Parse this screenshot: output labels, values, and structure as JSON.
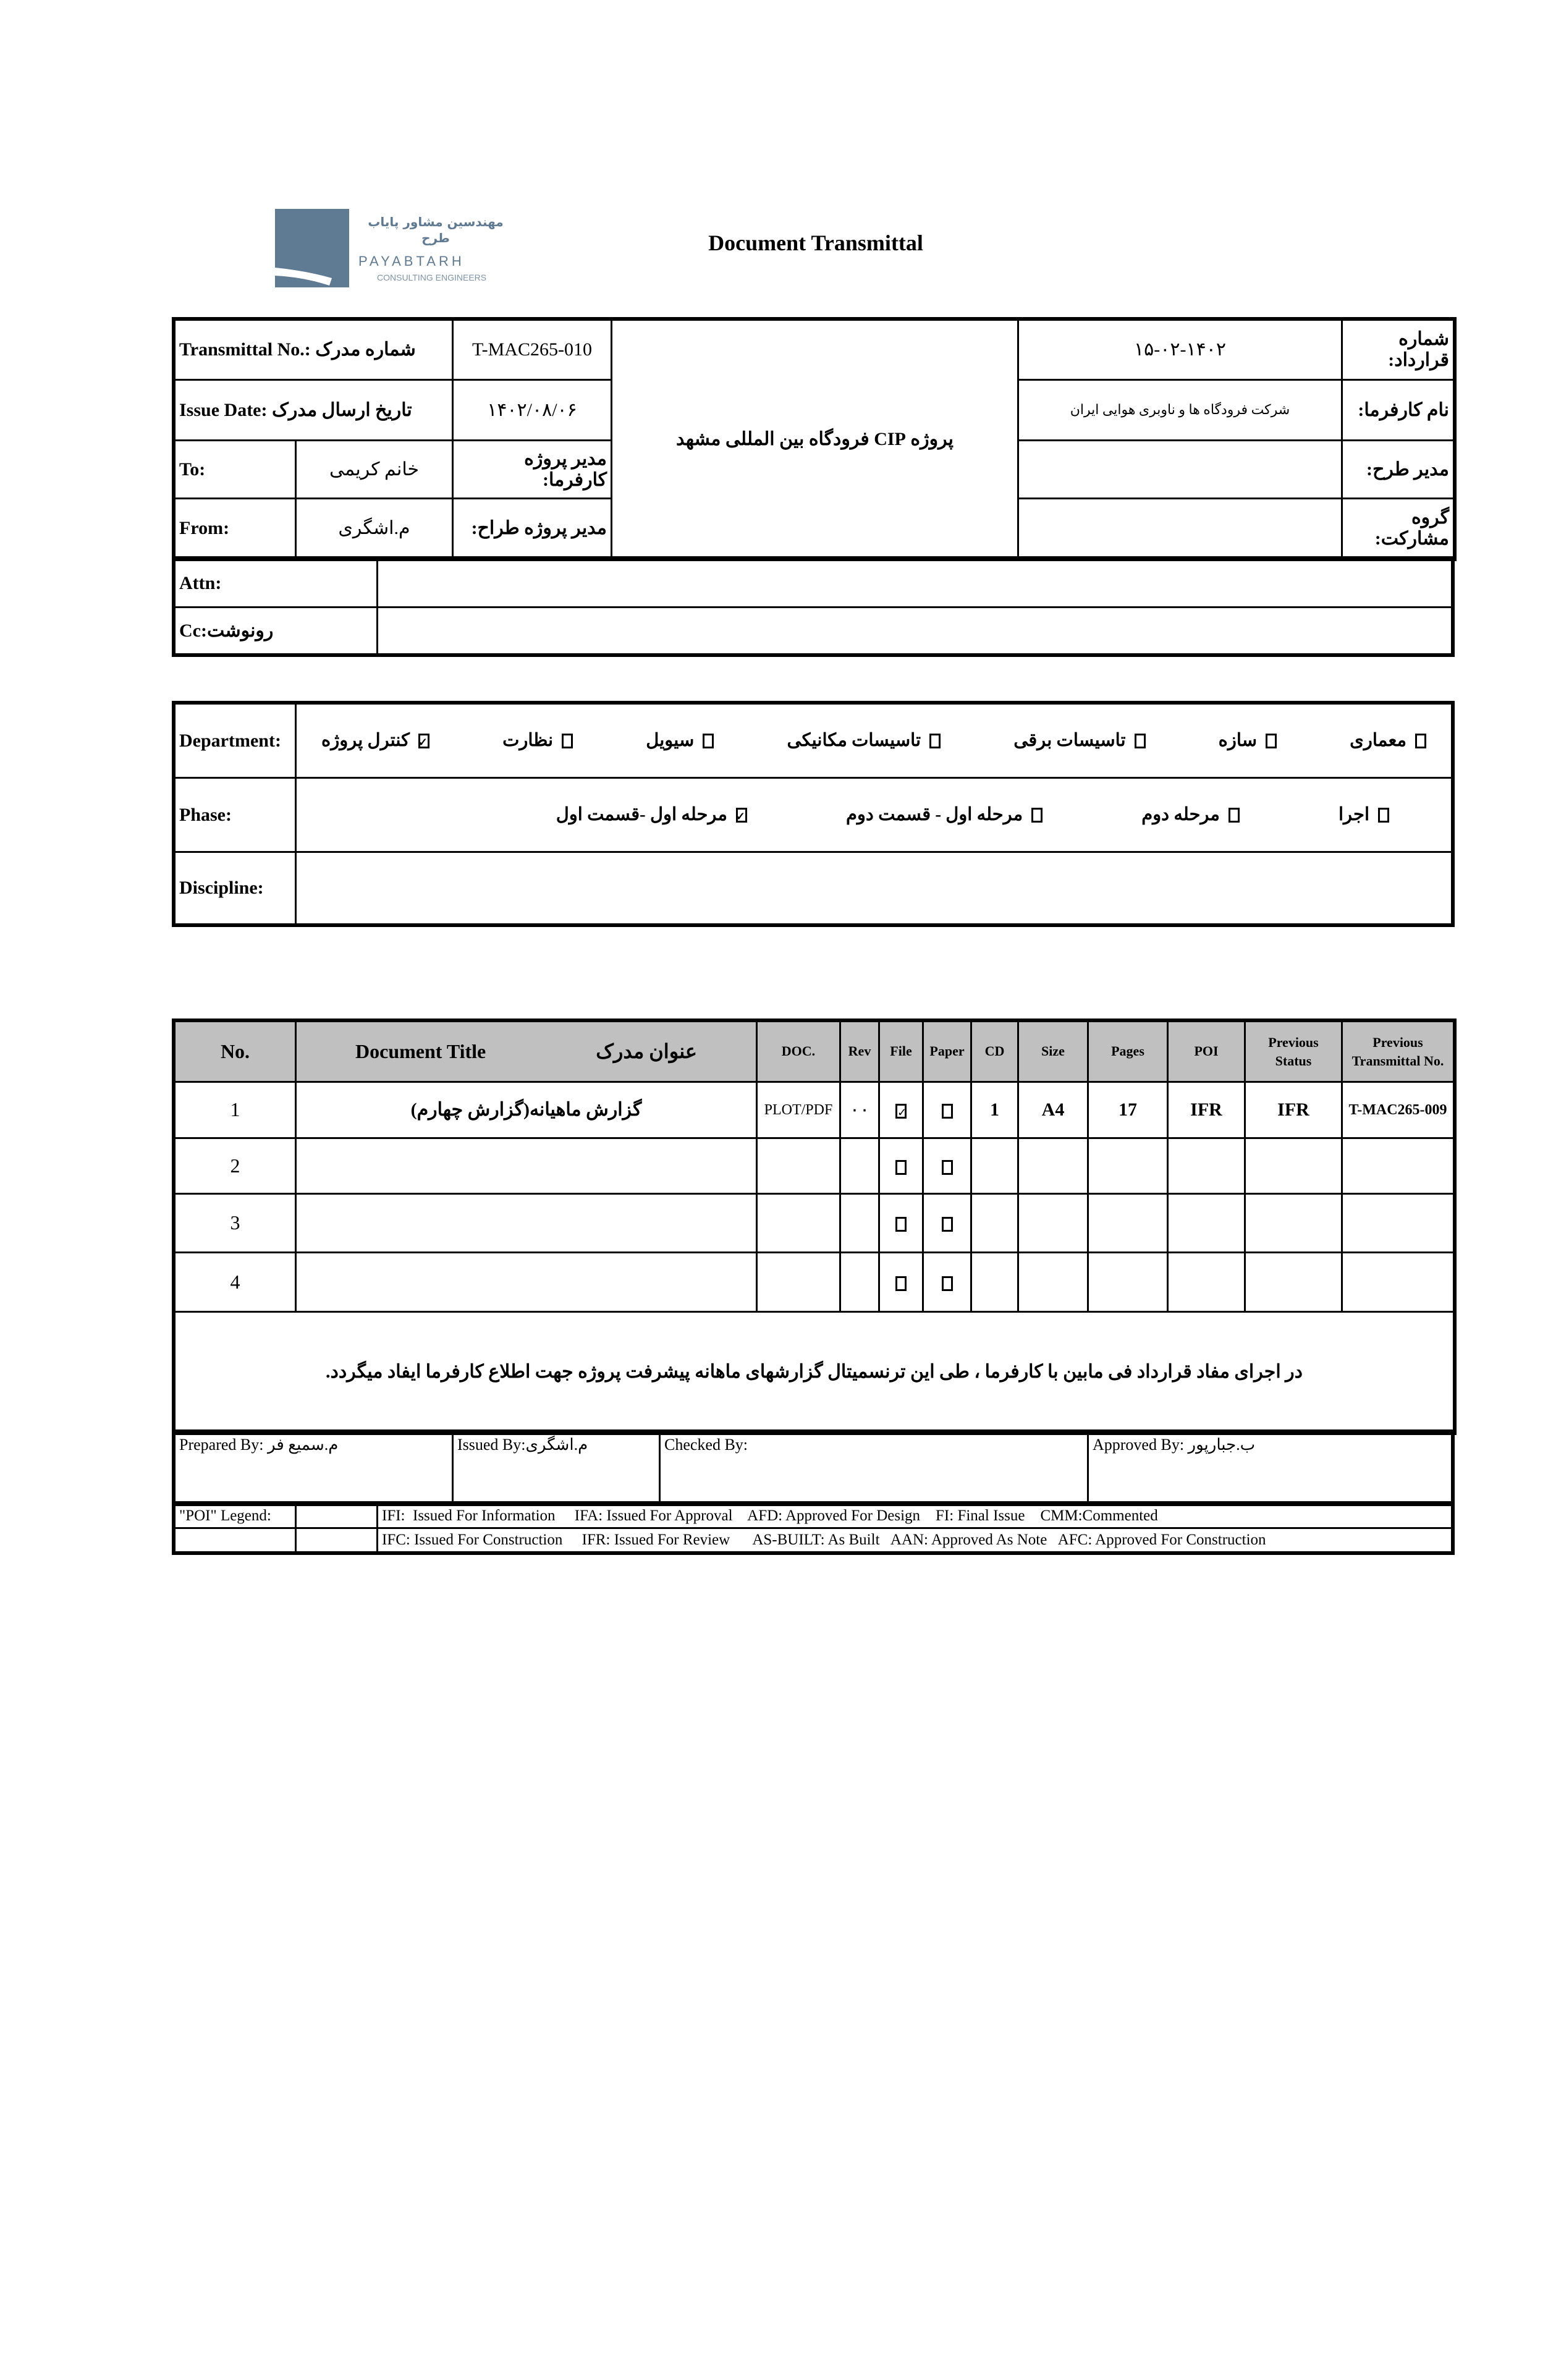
{
  "header": {
    "logo_fa": "مهندسین مشاور پایاب طرح",
    "logo_en": "PAYABTARH",
    "logo_sub": "CONSULTING ENGINEERS",
    "title": "Document Transmittal",
    "brand_color": "#5f7a93"
  },
  "info": {
    "transmittal_label": "Transmittal No.: شماره مدرک",
    "transmittal_value": "T-MAC265-010",
    "issue_label": "Issue Date: تاریخ ارسال مدرک",
    "issue_value": "۱۴۰۲/۰۸/۰۶",
    "to_label": "To:",
    "to_value": "خانم کریمی",
    "client_pm_label": "مدیر پروژه کارفرما:",
    "from_label": "From:",
    "from_value": "م.اشگری",
    "designer_pm_label": "مدیر پروژه طراح:",
    "project": "پروژه CIP فرودگاه بین المللی مشهد",
    "contract_value": "۱۵-۰۲-۱۴۰۲",
    "contract_label": "شماره قرارداد:",
    "client_value": "شرکت فرودگاه ها و ناوبری هوایی ایران",
    "client_label": "نام کارفرما:",
    "plan_manager_label": "مدیر طرح:",
    "partnership_label": "گروه مشارکت:",
    "attn_label": "Attn:",
    "cc_label": "Cc:رونوشت"
  },
  "classification": {
    "department_label": "Department:",
    "departments": [
      {
        "label": "معماری",
        "checked": false
      },
      {
        "label": "سازه",
        "checked": false
      },
      {
        "label": "تاسیسات برقی",
        "checked": false
      },
      {
        "label": "تاسیسات مکانیکی",
        "checked": false
      },
      {
        "label": "سیویل",
        "checked": false
      },
      {
        "label": "نظارت",
        "checked": false
      },
      {
        "label": "کنترل پروژه",
        "checked": true
      }
    ],
    "phase_label": "Phase:",
    "phases": [
      {
        "label": "اجرا",
        "checked": false
      },
      {
        "label": "مرحله دوم",
        "checked": false
      },
      {
        "label": "مرحله اول - قسمت دوم",
        "checked": false
      },
      {
        "label": "مرحله اول -قسمت اول",
        "checked": true
      }
    ],
    "discipline_label": "Discipline:"
  },
  "documents": {
    "headers": {
      "no": "No.",
      "title_en": "Document Title",
      "title_fa": "عنوان مدرک",
      "doc": "DOC.",
      "rev": "Rev",
      "file": "File",
      "paper": "Paper",
      "cd": "CD",
      "size": "Size",
      "pages": "Pages",
      "poi": "POI",
      "prev_status": "Previous Status",
      "prev_transmittal": "Previous Transmittal No."
    },
    "rows": [
      {
        "no": "1",
        "title": "گزارش ماهیانه(گزارش چهارم)",
        "doc": "PLOT/PDF",
        "rev": "۰۰",
        "file": true,
        "paper": false,
        "cd": "1",
        "size": "A4",
        "pages": "17",
        "poi": "IFR",
        "prev_status": "IFR",
        "prev_transmittal": "T-MAC265-009"
      },
      {
        "no": "2",
        "title": "",
        "doc": "",
        "rev": "",
        "file": false,
        "paper": false,
        "cd": "",
        "size": "",
        "pages": "",
        "poi": "",
        "prev_status": "",
        "prev_transmittal": ""
      },
      {
        "no": "3",
        "title": "",
        "doc": "",
        "rev": "",
        "file": false,
        "paper": false,
        "cd": "",
        "size": "",
        "pages": "",
        "poi": "",
        "prev_status": "",
        "prev_transmittal": ""
      },
      {
        "no": "4",
        "title": "",
        "doc": "",
        "rev": "",
        "file": false,
        "paper": false,
        "cd": "",
        "size": "",
        "pages": "",
        "poi": "",
        "prev_status": "",
        "prev_transmittal": ""
      }
    ],
    "note": "در اجرای مفاد قرارداد فی مابین با کارفرما ، طی این ترنسمیتال گزارشهای ماهانه پیشرفت پروژه جهت اطلاع کارفرما ایفاد میگردد."
  },
  "signatures": {
    "prepared": "Prepared By: م.سمیع فر",
    "issued": "Issued By:م.اشگری",
    "checked": "Checked By:",
    "approved": "Approved By: ب.جبارپور"
  },
  "legend": {
    "label": "\"POI\" Legend:",
    "line1": "IFI:  Issued For Information     IFA: Issued For Approval    AFD: Approved For Design    FI: Final Issue    CMM:Commented",
    "line2": "IFC: Issued For Construction     IFR: Issued For Review      AS-BUILT: As Built   AAN: Approved As Note   AFC: Approved For Construction"
  }
}
